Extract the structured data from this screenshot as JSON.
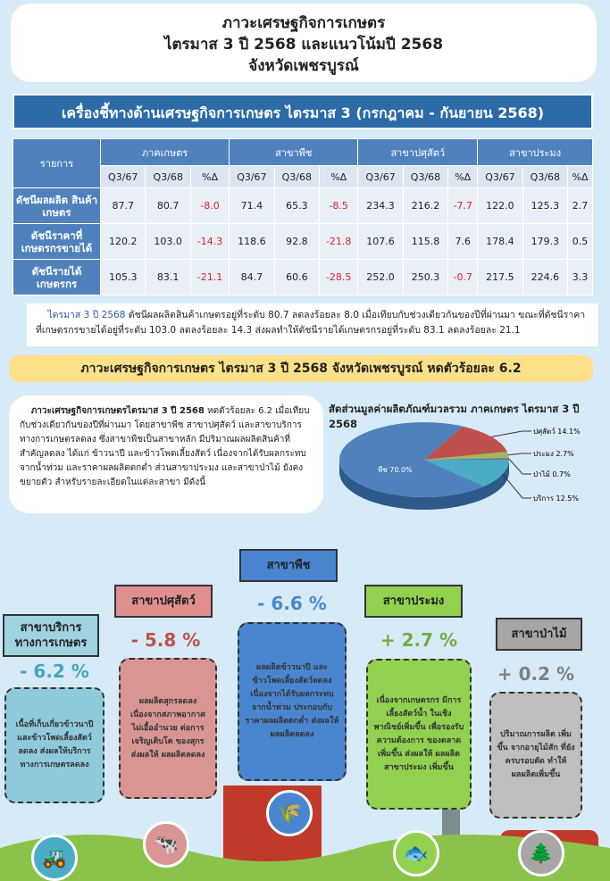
{
  "title": {
    "line1": "ภาวะเศรษฐกิจการเกษตร",
    "line2": "ไตรมาส 3 ปี 2568 และแนวโน้มปี 2568",
    "line3": "จังหวัดเพชรบูรณ์"
  },
  "header_bar": "เครื่องชี้ทางด้านเศรษฐกิจการเกษตร ไตรมาส 3 (กรกฎาคม - กันยายน 2568)",
  "table": {
    "item_header": "รายการ",
    "groups": [
      "ภาคเกษตร",
      "สาขาพืช",
      "สาขาปศุสัตว์",
      "สาขาประมง"
    ],
    "subheaders": [
      "Q3/67",
      "Q3/68",
      "%Δ"
    ],
    "rows": [
      {
        "label": "ดัชนีผลผลิต สินค้าเกษตร",
        "values": [
          "87.7",
          "80.7",
          "-8.0",
          "71.4",
          "65.3",
          "-8.5",
          "234.3",
          "216.2",
          "-7.7",
          "122.0",
          "125.3",
          "2.7"
        ]
      },
      {
        "label": "ดัชนีราคาที่ เกษตรกรขายได้",
        "values": [
          "120.2",
          "103.0",
          "-14.3",
          "118.6",
          "92.8",
          "-21.8",
          "107.6",
          "115.8",
          "7.6",
          "178.4",
          "179.3",
          "0.5"
        ]
      },
      {
        "label": "ดัชนีรายได้ เกษตรกร",
        "values": [
          "105.3",
          "83.1",
          "-21.1",
          "84.7",
          "60.6",
          "-28.5",
          "252.0",
          "250.3",
          "-0.7",
          "217.5",
          "224.6",
          "3.3"
        ]
      }
    ]
  },
  "summary": {
    "highlight": "ไตรมาส 3 ปี 2568",
    "text": " ดัชนีผลผลิตสินค้าเกษตรอยู่ที่ระดับ 80.7 ลดลงร้อยละ 8.0 เมื่อเทียบกับช่วงเดียวกันของปีที่ผ่านมา ขณะที่ดัชนีราคาที่เกษตรกรขายได้อยู่ที่ระดับ 103.0 ลดลงร้อยละ 14.3 ส่งผลทำให้ดัชนีรายได้เกษตรกรอยู่ที่ระดับ 83.1 ลดลงร้อยละ 21.1"
  },
  "banner": "ภาวะเศรษฐกิจการเกษตร ไตรมาส 3 ปี 2568 จังหวัดเพชรบูรณ์ หดตัวร้อยละ 6.2",
  "overview": {
    "bold": "ภาวะเศรษฐกิจการเกษตรไตรมาส 3 ปี 2568",
    "text": " หดตัวร้อยละ 6.2 เมื่อเทียบกับช่วงเดียวกันของปีที่ผ่านมา โดยสาขาพืช สาขาปศุสัตว์ และสาขาบริการทางการเกษตรลดลง ซึ่งสาขาพืชเป็นสาขาหลัก มีปริมาณผลผลิตสินค้าที่สำคัญลดลง ได้แก่ ข้าวนาปี และข้าวโพดเลี้ยงสัตว์ เนื่องจากได้รับผลกระทบจากน้ำท่วม และราคาผลผลิตตกต่ำ ส่วนสาขาประมง และสาขาป่าไม้ ยังคงขยายตัว สำหรับรายละเอียดในแต่ละสาขา มีดังนี้"
  },
  "chart_data": {
    "type": "pie",
    "title": "สัดส่วนมูลค่าผลิตภัณฑ์มวลรวม ภาคเกษตร ไตรมาส 3 ปี 2568",
    "categories": [
      "ปศุสัตว์",
      "ประมง",
      "ป่าไม้",
      "บริการ",
      "พืช"
    ],
    "values": [
      14.1,
      2.7,
      0.7,
      12.5,
      70.0
    ],
    "labels": [
      "ปศุสัตว์ 14.1%",
      "ประมง 2.7%",
      "ป่าไม้ 0.7%",
      "บริการ 12.5%",
      "พืช 70.0%"
    ],
    "colors": [
      "#c0504d",
      "#9bbb59",
      "#8064a2",
      "#4bacc6",
      "#4f81bd"
    ]
  },
  "sectors": [
    {
      "name": "สาขาบริการ ทางการเกษตร",
      "pct": "- 6.2 %",
      "desc": "เนื้อที่เก็บเกี่ยวข้าวนาปี และข้าวโพดเลี้ยงสัตว์ ลดลง ส่งผลให้บริการ ทางการเกษตรลดลง"
    },
    {
      "name": "สาขาปศุสัตว์",
      "pct": "- 5.8 %",
      "desc": "ผลผลิตสุกรลดลง เนื่องจากสภาพอากาศ ไม่เอื้ออำนวย ต่อการเจริญเติบโต ของสุกร ส่งผลให้ ผลผลิตลดลง"
    },
    {
      "name": "สาขาพืช",
      "pct": "- 6.6 %",
      "desc": "ผลผลิตข้าวนาปี และข้าวโพดเลี้ยงสัตว์ลดลง เนื่องจากได้รับผลกระทบ จากน้ำท่วม ประกอบกับ ราคาผลผลิตตกต่ำ ส่งผลให้ ผลผลิตลดลง"
    },
    {
      "name": "สาขาประมง",
      "pct": "+ 2.7 %",
      "desc": "เนื่องจากเกษตรกร มีการเลี้ยงสัตว์น้ำ ในเชิงพาณิชย์เพิ่มขึ้น เพื่อรองรับความต้องการ ของตลาดเพิ่มขึ้น ส่งผลให้ ผลผลิตสาขาประมง เพิ่มขึ้น"
    },
    {
      "name": "สาขาป่าไม้",
      "pct": "+ 0.2 %",
      "desc": "ปริมาณการผลิต เพิ่มขึ้น จากอายุไม้สัก ที่ยังครบรอบตัด ทำให้ผลผลิตเพิ่มขึ้น"
    }
  ]
}
